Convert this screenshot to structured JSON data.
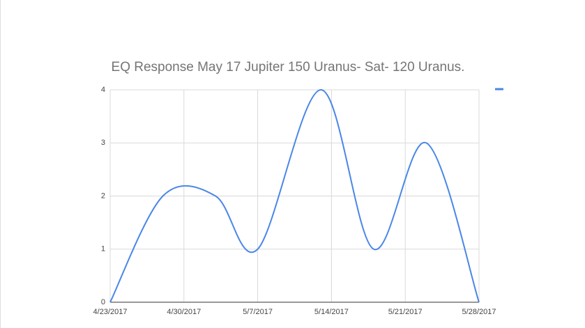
{
  "chart_data": {
    "type": "line",
    "title": "EQ Response May 17 Jupiter 150 Uranus- Sat- 120 Uranus.",
    "x": [
      "4/23/2017",
      "4/28/2017",
      "5/3/2017",
      "5/7/2017",
      "5/13/2017",
      "5/18/2017",
      "5/23/2017",
      "5/28/2017"
    ],
    "series": [
      {
        "color": "#4a86e8",
        "values": [
          0,
          2,
          2,
          1,
          4,
          1,
          3,
          0
        ]
      }
    ],
    "xlim": [
      "4/23/2017",
      "5/28/2017"
    ],
    "xticks": [
      "4/23/2017",
      "4/30/2017",
      "5/7/2017",
      "5/14/2017",
      "5/21/2017",
      "5/28/2017"
    ],
    "ylim": [
      0,
      4
    ],
    "yticks": [
      0,
      1,
      2,
      3,
      4
    ],
    "grid": true,
    "legend": "right"
  }
}
